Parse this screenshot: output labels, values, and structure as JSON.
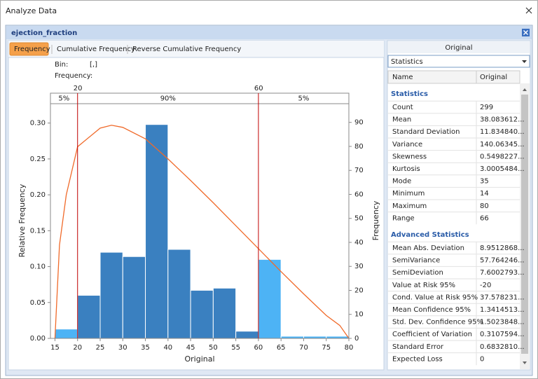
{
  "window": {
    "title": "Analyze Data"
  },
  "panel": {
    "title": "ejection_fraction"
  },
  "tabs": [
    "Frequency",
    "Cumulative Frequency",
    "Reverse Cumulative Frequency"
  ],
  "chart_info": {
    "bin_label": "Bin:",
    "bin_value": "[,]",
    "frequency_label": "Frequency:"
  },
  "chart_data": {
    "type": "histogram",
    "x_label": "Original",
    "y_label": "Relative Frequency",
    "y2_label": "Frequency",
    "bins": [
      15,
      20,
      25,
      30,
      35,
      40,
      45,
      50,
      55,
      60,
      65,
      70,
      75,
      80
    ],
    "values": [
      0.013,
      0.06,
      0.12,
      0.114,
      0.298,
      0.124,
      0.067,
      0.07,
      0.01,
      0.11,
      0.003,
      0.003,
      0.003
    ],
    "colors": [
      "#4db3f5",
      "#3a80c0",
      "#3a80c0",
      "#3a80c0",
      "#3a80c0",
      "#3a80c0",
      "#3a80c0",
      "#3a80c0",
      "#3a80c0",
      "#4db3f5",
      "#4db3f5",
      "#4db3f5",
      "#4db3f5"
    ],
    "curve": {
      "color": "#f06a2a",
      "x": [
        15,
        16,
        17.5,
        20,
        25,
        27.5,
        30,
        35,
        40,
        45,
        50,
        55,
        60,
        65,
        70,
        75,
        78,
        80
      ],
      "values": [
        0,
        0.13,
        0.2,
        0.267,
        0.293,
        0.297,
        0.294,
        0.278,
        0.25,
        0.22,
        0.189,
        0.157,
        0.125,
        0.093,
        0.062,
        0.032,
        0.018,
        0
      ]
    },
    "markers": [
      20,
      60
    ],
    "marker_color": "#c00000",
    "band_labels": [
      "5%",
      "90%",
      "5%"
    ],
    "xlim": [
      14,
      80
    ],
    "xticks": [
      15,
      20,
      25,
      30,
      35,
      40,
      45,
      50,
      55,
      60,
      65,
      70,
      75,
      80
    ],
    "ylim": [
      0,
      0.327
    ],
    "yticks": [
      {
        "value": 0,
        "label": "0.00"
      },
      {
        "value": 0.05,
        "label": "0.05"
      },
      {
        "value": 0.1,
        "label": "0.10"
      },
      {
        "value": 0.15,
        "label": "0.15"
      },
      {
        "value": 0.2,
        "label": "0.20"
      },
      {
        "value": 0.25,
        "label": "0.25"
      },
      {
        "value": 0.3,
        "label": "0.30"
      }
    ],
    "y2lim": [
      0,
      97.8
    ],
    "y2ticks": [
      0,
      10,
      20,
      30,
      40,
      50,
      60,
      70,
      80,
      90
    ]
  },
  "stats": {
    "column_header": "Original",
    "dropdown": "Statistics",
    "columns": [
      "Name",
      "Original"
    ],
    "sections": [
      {
        "title": "Statistics",
        "rows": [
          [
            "Count",
            "299"
          ],
          [
            "Mean",
            "38.083612..."
          ],
          [
            "Standard Deviation",
            "11.834840..."
          ],
          [
            "Variance",
            "140.06345..."
          ],
          [
            "Skewness",
            "0.5498227..."
          ],
          [
            "Kurtosis",
            "3.0005484..."
          ],
          [
            "Mode",
            "35"
          ],
          [
            "Minimum",
            "14"
          ],
          [
            "Maximum",
            "80"
          ],
          [
            "Range",
            "66"
          ]
        ]
      },
      {
        "title": "Advanced Statistics",
        "rows": [
          [
            "Mean Abs. Deviation",
            "8.9512868..."
          ],
          [
            "SemiVariance",
            "57.764246..."
          ],
          [
            "SemiDeviation",
            "7.6002793..."
          ],
          [
            "Value at Risk 95%",
            "-20"
          ],
          [
            "Cond. Value at Risk 95%",
            "37.578231..."
          ],
          [
            "Mean Confidence 95%",
            "1.3414513..."
          ],
          [
            "Std. Dev. Confidence 95%",
            "1.5023848..."
          ],
          [
            "Coefficient of Variation",
            "0.3107594..."
          ],
          [
            "Standard Error",
            "0.6832810..."
          ],
          [
            "Expected Loss",
            "0"
          ]
        ]
      }
    ]
  }
}
